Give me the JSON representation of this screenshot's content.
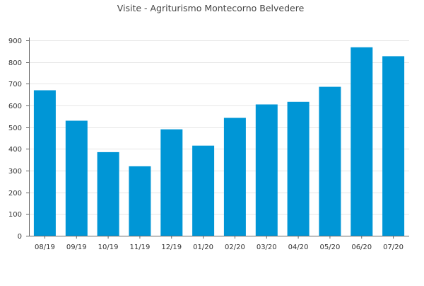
{
  "chart_data": {
    "type": "bar",
    "title": "Visite - Agriturismo Montecorno Belvedere",
    "xlabel": "",
    "ylabel": "",
    "categories": [
      "08/19",
      "09/19",
      "10/19",
      "11/19",
      "12/19",
      "01/20",
      "02/20",
      "03/20",
      "04/20",
      "05/20",
      "06/20",
      "07/20"
    ],
    "values": [
      670,
      530,
      385,
      320,
      490,
      415,
      543,
      605,
      617,
      686,
      868,
      827
    ],
    "ylim": [
      0,
      900
    ],
    "yticks": [
      0,
      100,
      200,
      300,
      400,
      500,
      600,
      700,
      800,
      900
    ],
    "grid": true,
    "legend": "none",
    "bar_color": "#0096d6"
  }
}
